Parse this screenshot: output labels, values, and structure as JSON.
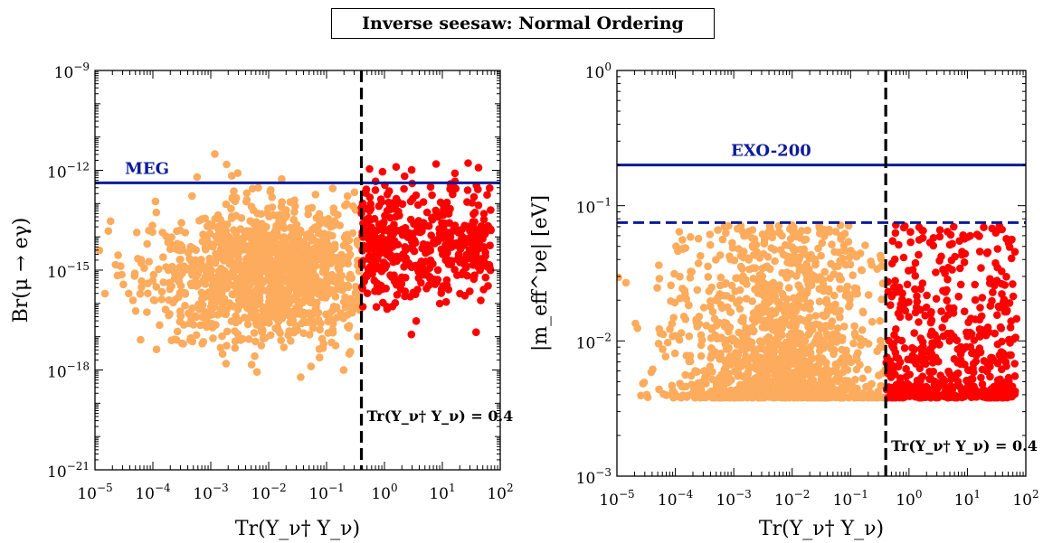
{
  "figure": {
    "title": "Inverse seesaw: Normal Ordering"
  },
  "colors": {
    "light_points": "#fdab5c",
    "dark_points": "#ff0000",
    "limit_line": "#0a1a9a",
    "cut_line": "#000000"
  },
  "chart_data": [
    {
      "type": "scatter",
      "panel": "left",
      "xlabel": "Tr(Y_ν† Y_ν)",
      "ylabel": "Br(μ → eγ)",
      "xscale": "log",
      "yscale": "log",
      "xlim": [
        1e-05,
        100
      ],
      "ylim": [
        1e-21,
        1e-09
      ],
      "x_ticks": [
        "10^-5",
        "10^-4",
        "10^-3",
        "10^-2",
        "10^-1",
        "10^0",
        "10^1",
        "10^2"
      ],
      "y_ticks": [
        "10^-21",
        "10^-18",
        "10^-15",
        "10^-12",
        "10^-9"
      ],
      "hlines": [
        {
          "label": "MEG",
          "y": 4.2e-13,
          "style": "solid"
        }
      ],
      "vline": {
        "x": 0.4,
        "label": "Tr(Y_ν† Y_ν) = 0.4"
      },
      "series": [
        {
          "color": "light",
          "x_range": [
            1e-05,
            0.4
          ],
          "y_center_log": -15.0,
          "y_spread_log": 1.0,
          "n": 1300
        },
        {
          "color": "dark",
          "x_range": [
            0.4,
            70
          ],
          "y_center_log": -14.2,
          "y_spread_log": 0.9,
          "n": 480
        }
      ]
    },
    {
      "type": "scatter",
      "panel": "right",
      "xlabel": "Tr(Y_ν† Y_ν)",
      "ylabel": "|m_eff^νe|  [eV]",
      "xscale": "log",
      "yscale": "log",
      "xlim": [
        1e-05,
        100
      ],
      "ylim": [
        0.001,
        1
      ],
      "x_ticks": [
        "10^-5",
        "10^-4",
        "10^-3",
        "10^-2",
        "10^-1",
        "10^0",
        "10^1",
        "10^2"
      ],
      "y_ticks": [
        "10^-3",
        "10^-2",
        "10^-1",
        "10^0"
      ],
      "hlines": [
        {
          "label": "EXO-200",
          "y": 0.2,
          "style": "solid"
        },
        {
          "label": "",
          "y": 0.075,
          "style": "dashed"
        }
      ],
      "vline": {
        "x": 0.4,
        "label": "Tr(Y_ν† Y_ν) = 0.4"
      },
      "series": [
        {
          "color": "light",
          "x_range": [
            1e-05,
            0.4
          ],
          "y_range": [
            0.0038,
            0.072
          ],
          "n": 1400
        },
        {
          "color": "dark",
          "x_range": [
            0.4,
            70
          ],
          "y_range": [
            0.0038,
            0.072
          ],
          "n": 520
        }
      ]
    }
  ]
}
